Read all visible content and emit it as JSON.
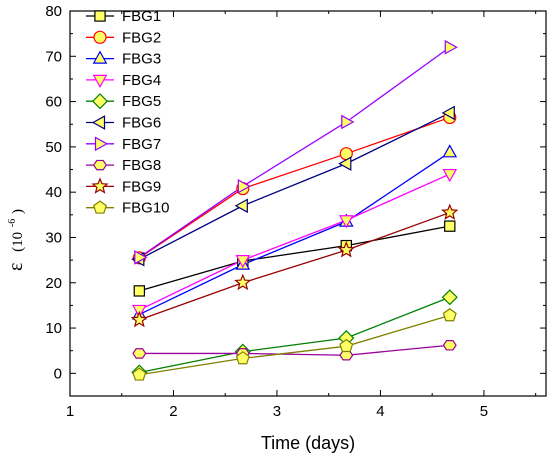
{
  "chart_data": {
    "type": "line",
    "title": "",
    "xlabel": "Time (days)",
    "ylabel_main": "ε",
    "ylabel_unit_base": "(10",
    "ylabel_unit_exp": "-6",
    "ylabel_unit_close": ")",
    "xlim": [
      1,
      5.6
    ],
    "ylim": [
      -5,
      80
    ],
    "xticks": [
      1,
      2,
      3,
      4,
      5
    ],
    "yticks": [
      0,
      10,
      20,
      30,
      40,
      50,
      60,
      70,
      80
    ],
    "grid": false,
    "legend_position": "top-left",
    "x": [
      1.67,
      2.67,
      3.67,
      4.67
    ],
    "series": [
      {
        "name": "FBG1",
        "color": "#000000",
        "fill": "#ffff66",
        "marker": "square",
        "values": [
          18.2,
          24.8,
          28.2,
          32.5
        ]
      },
      {
        "name": "FBG2",
        "color": "#ff0000",
        "fill": "#ffff66",
        "marker": "circle",
        "values": [
          25.5,
          40.8,
          48.5,
          56.5
        ]
      },
      {
        "name": "FBG3",
        "color": "#0000ff",
        "fill": "#ffff66",
        "marker": "triangle-up",
        "values": [
          13.0,
          24.0,
          33.5,
          48.8
        ]
      },
      {
        "name": "FBG4",
        "color": "#ff00ff",
        "fill": "#ffff66",
        "marker": "triangle-down",
        "values": [
          14.0,
          25.0,
          33.8,
          44.0
        ]
      },
      {
        "name": "FBG5",
        "color": "#008000",
        "fill": "#ffff66",
        "marker": "diamond",
        "values": [
          0.2,
          4.8,
          7.8,
          16.8
        ]
      },
      {
        "name": "FBG6",
        "color": "#000080",
        "fill": "#ffff66",
        "marker": "triangle-left",
        "values": [
          25.2,
          37.0,
          46.3,
          57.5
        ]
      },
      {
        "name": "FBG7",
        "color": "#9900ff",
        "fill": "#ffff66",
        "marker": "triangle-right",
        "values": [
          25.6,
          41.3,
          55.5,
          72.0
        ]
      },
      {
        "name": "FBG8",
        "color": "#990099",
        "fill": "#ffff66",
        "marker": "hexagon",
        "values": [
          4.4,
          4.4,
          4.0,
          6.2
        ]
      },
      {
        "name": "FBG9",
        "color": "#990000",
        "fill": "#ffff66",
        "marker": "star",
        "values": [
          11.8,
          20.0,
          27.2,
          35.5
        ]
      },
      {
        "name": "FBG10",
        "color": "#808000",
        "fill": "#ffff66",
        "marker": "pentagon",
        "values": [
          -0.3,
          3.3,
          6.0,
          12.8
        ]
      }
    ]
  }
}
